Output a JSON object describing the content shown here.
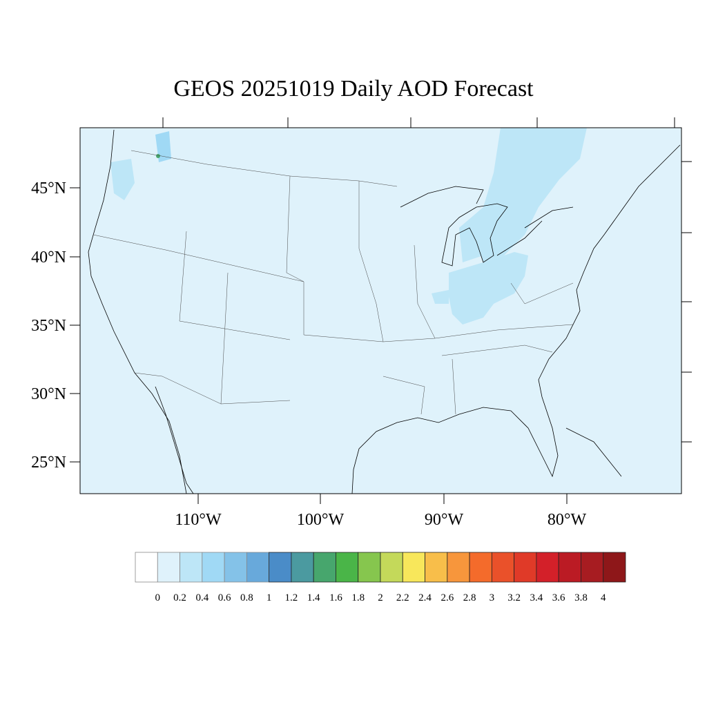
{
  "chart_data": {
    "type": "map",
    "title": "GEOS 20251019 Daily AOD Forecast",
    "projection": "lambert-conformal",
    "region": "Continental United States",
    "lat_ticks": [
      "25°N",
      "30°N",
      "35°N",
      "40°N",
      "45°N"
    ],
    "lon_ticks": [
      "110°W",
      "100°W",
      "90°W",
      "80°W"
    ],
    "background_color": "#dff2fb",
    "colorbar": {
      "orientation": "horizontal",
      "labels": [
        "0",
        "0.2",
        "0.4",
        "0.6",
        "0.8",
        "1",
        "1.2",
        "1.4",
        "1.6",
        "1.8",
        "2",
        "2.2",
        "2.4",
        "2.6",
        "2.8",
        "3",
        "3.2",
        "3.4",
        "3.6",
        "3.8",
        "4"
      ],
      "colors": [
        "#ffffff",
        "#dff2fb",
        "#bde6f7",
        "#a0d9f5",
        "#84c2e8",
        "#68a9db",
        "#4a8cc8",
        "#4b9aa0",
        "#47a66d",
        "#4ab548",
        "#86c64e",
        "#c4d95a",
        "#f8e75b",
        "#f8be4a",
        "#f7963c",
        "#f46b2b",
        "#ea512a",
        "#e03a28",
        "#d32029",
        "#bb1b24",
        "#a71c21",
        "#8e1719"
      ]
    },
    "aod_features": [
      {
        "region": "Ohio Valley / Indiana / Ohio",
        "level": "0.2-0.4"
      },
      {
        "region": "Ontario / Quebec plume",
        "level": "0.2-0.4"
      },
      {
        "region": "Pacific Northwest / Idaho",
        "level": "0.2-0.6"
      },
      {
        "region": "Northern Idaho small spot",
        "level": "1.4-1.6"
      }
    ]
  }
}
